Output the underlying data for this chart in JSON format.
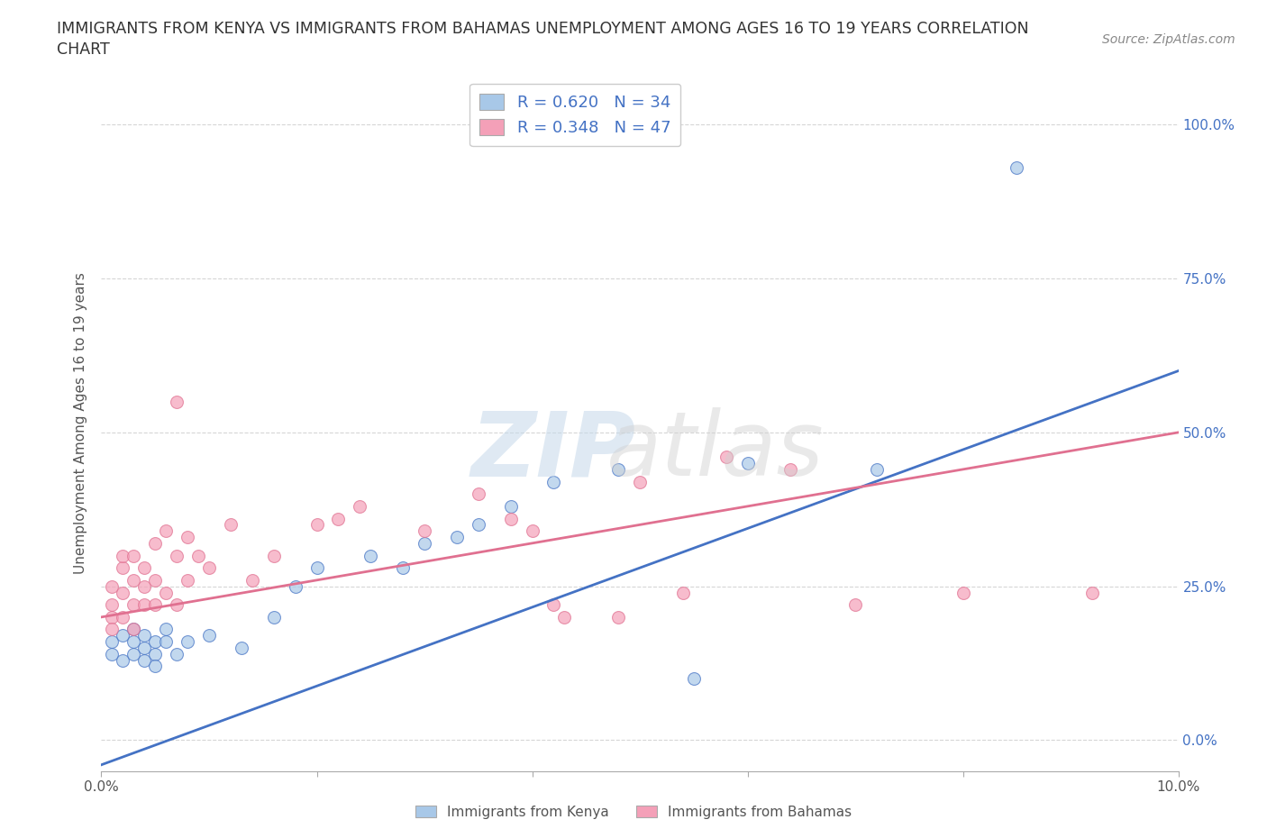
{
  "title_line1": "IMMIGRANTS FROM KENYA VS IMMIGRANTS FROM BAHAMAS UNEMPLOYMENT AMONG AGES 16 TO 19 YEARS CORRELATION",
  "title_line2": "CHART",
  "source_text": "Source: ZipAtlas.com",
  "ylabel": "Unemployment Among Ages 16 to 19 years",
  "xlim": [
    0.0,
    0.1
  ],
  "ylim": [
    -0.05,
    1.08
  ],
  "yticks": [
    0.0,
    0.25,
    0.5,
    0.75,
    1.0
  ],
  "ytick_labels": [
    "0.0%",
    "25.0%",
    "50.0%",
    "75.0%",
    "100.0%"
  ],
  "xticks": [
    0.0,
    0.02,
    0.04,
    0.06,
    0.08,
    0.1
  ],
  "xtick_labels": [
    "0.0%",
    "",
    "",
    "",
    "",
    "10.0%"
  ],
  "kenya_color": "#a8c8e8",
  "bahamas_color": "#f4a0b8",
  "kenya_line_color": "#4472c4",
  "bahamas_line_color": "#e07090",
  "kenya_R": 0.62,
  "kenya_N": 34,
  "bahamas_R": 0.348,
  "bahamas_N": 47,
  "background_color": "#ffffff",
  "grid_color": "#cccccc",
  "kenya_scatter_x": [
    0.001,
    0.001,
    0.002,
    0.002,
    0.003,
    0.003,
    0.003,
    0.004,
    0.004,
    0.004,
    0.005,
    0.005,
    0.005,
    0.006,
    0.006,
    0.007,
    0.008,
    0.01,
    0.013,
    0.016,
    0.018,
    0.02,
    0.025,
    0.028,
    0.03,
    0.033,
    0.035,
    0.038,
    0.042,
    0.048,
    0.055,
    0.06,
    0.072,
    0.085
  ],
  "kenya_scatter_y": [
    0.14,
    0.16,
    0.13,
    0.17,
    0.14,
    0.16,
    0.18,
    0.13,
    0.15,
    0.17,
    0.14,
    0.16,
    0.12,
    0.16,
    0.18,
    0.14,
    0.16,
    0.17,
    0.15,
    0.2,
    0.25,
    0.28,
    0.3,
    0.28,
    0.32,
    0.33,
    0.35,
    0.38,
    0.42,
    0.44,
    0.1,
    0.45,
    0.44,
    0.93
  ],
  "bahamas_scatter_x": [
    0.001,
    0.001,
    0.001,
    0.001,
    0.002,
    0.002,
    0.002,
    0.002,
    0.003,
    0.003,
    0.003,
    0.003,
    0.004,
    0.004,
    0.004,
    0.005,
    0.005,
    0.005,
    0.006,
    0.006,
    0.007,
    0.007,
    0.007,
    0.008,
    0.008,
    0.009,
    0.01,
    0.012,
    0.014,
    0.016,
    0.02,
    0.022,
    0.024,
    0.03,
    0.035,
    0.038,
    0.04,
    0.042,
    0.043,
    0.048,
    0.05,
    0.054,
    0.058,
    0.064,
    0.07,
    0.08,
    0.092
  ],
  "bahamas_scatter_y": [
    0.2,
    0.22,
    0.25,
    0.18,
    0.28,
    0.24,
    0.3,
    0.2,
    0.22,
    0.26,
    0.3,
    0.18,
    0.28,
    0.25,
    0.22,
    0.32,
    0.26,
    0.22,
    0.34,
    0.24,
    0.3,
    0.22,
    0.55,
    0.33,
    0.26,
    0.3,
    0.28,
    0.35,
    0.26,
    0.3,
    0.35,
    0.36,
    0.38,
    0.34,
    0.4,
    0.36,
    0.34,
    0.22,
    0.2,
    0.2,
    0.42,
    0.24,
    0.46,
    0.44,
    0.22,
    0.24,
    0.24
  ],
  "kenya_line_x0": 0.0,
  "kenya_line_y0": -0.04,
  "kenya_line_x1": 0.1,
  "kenya_line_y1": 0.6,
  "bahamas_line_x0": 0.0,
  "bahamas_line_y0": 0.2,
  "bahamas_line_x1": 0.1,
  "bahamas_line_y1": 0.5
}
